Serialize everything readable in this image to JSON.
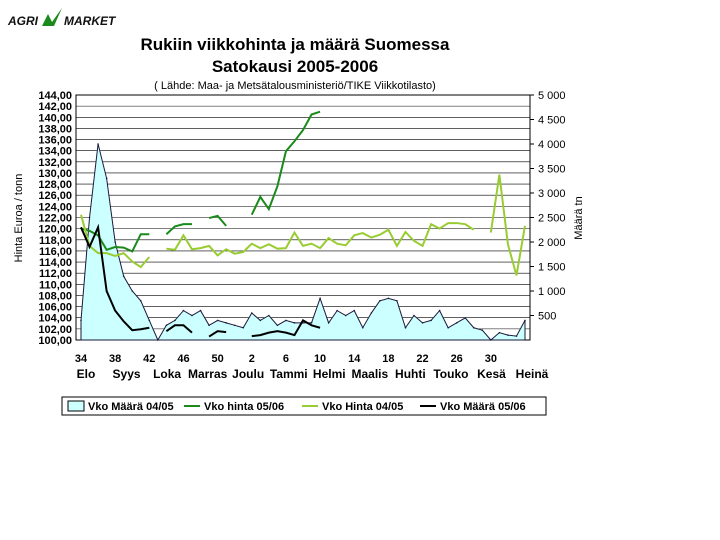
{
  "logo": {
    "text_left": "AGRI",
    "text_right": "MARKET"
  },
  "chart_data": {
    "type": "area",
    "title_line1": "Rukiin viikkohinta ja määrä Suomessa",
    "title_line2": "Satokausi 2005-2006",
    "subtitle": "( Lähde: Maa- ja Metsätalousministeriö/TIKE Viikkotilasto)",
    "ylabel_left": "Hinta Euroa / tonn",
    "ylabel_right": "Määrä tn",
    "ylim_left": [
      100,
      144
    ],
    "ylim_right": [
      0,
      5000
    ],
    "yticks_left": [
      "144,00",
      "142,00",
      "140,00",
      "138,00",
      "136,00",
      "134,00",
      "132,00",
      "130,00",
      "128,00",
      "126,00",
      "124,00",
      "122,00",
      "120,00",
      "118,00",
      "116,00",
      "114,00",
      "112,00",
      "110,00",
      "108,00",
      "106,00",
      "104,00",
      "102,00",
      "100,00"
    ],
    "yticks_right": [
      "5 000",
      "4 500",
      "4 000",
      "3 500",
      "3 000",
      "2 500",
      "2 000",
      "1 500",
      "1 000",
      "500"
    ],
    "week_ticks": [
      "34",
      "38",
      "42",
      "46",
      "50",
      "2",
      "6",
      "10",
      "14",
      "18",
      "22",
      "26",
      "30"
    ],
    "month_labels": [
      "Elo",
      "Syys",
      "Loka",
      "Marras",
      "Joulu",
      "Tammi",
      "Helmi",
      "Maalis",
      "Huhti",
      "Touko",
      "Kesä",
      "Heinä"
    ],
    "weeks": [
      "34",
      "35",
      "36",
      "37",
      "38",
      "39",
      "40",
      "41",
      "42",
      "43",
      "44",
      "45",
      "46",
      "47",
      "48",
      "49",
      "50",
      "51",
      "52",
      "1",
      "2",
      "3",
      "4",
      "5",
      "6",
      "7",
      "8",
      "9",
      "10",
      "11",
      "12",
      "13",
      "14",
      "15",
      "16",
      "17",
      "18",
      "19",
      "20",
      "21",
      "22",
      "23",
      "24",
      "25",
      "26",
      "27",
      "28",
      "29",
      "30",
      "31",
      "32",
      "33",
      "34"
    ],
    "grid": true,
    "legend_position": "bottom",
    "series": [
      {
        "name": "Vko Määrä 04/05",
        "axis": "right",
        "kind": "area",
        "color": "#ccffff",
        "values": [
          400,
          2500,
          4000,
          3300,
          2000,
          1300,
          1000,
          800,
          400,
          0,
          300,
          400,
          600,
          500,
          600,
          300,
          400,
          350,
          300,
          250,
          550,
          400,
          500,
          300,
          400,
          350,
          350,
          350,
          850,
          350,
          600,
          500,
          600,
          250,
          550,
          800,
          850,
          800,
          250,
          500,
          350,
          400,
          600,
          250,
          350,
          450,
          250,
          200,
          0,
          150,
          100,
          80,
          400
        ]
      },
      {
        "name": "Vko hinta 05/06",
        "axis": "left",
        "kind": "line",
        "color": "#1a8a1a",
        "values": [
          120.0,
          119.6,
          118.8,
          116.2,
          116.7,
          116.6,
          115.9,
          119.0,
          119.0,
          null,
          119.0,
          120.4,
          120.8,
          120.8,
          null,
          121.9,
          122.3,
          120.5,
          null,
          null,
          122.5,
          125.7,
          123.5,
          127.6,
          133.9,
          135.7,
          137.7,
          140.5,
          141.0
        ]
      },
      {
        "name": "Vko Hinta 04/05",
        "axis": "left",
        "kind": "line",
        "color": "#99cc33",
        "values": [
          122.5,
          116.9,
          115.6,
          115.6,
          115.1,
          115.6,
          114.1,
          113.1,
          114.9,
          null,
          116.4,
          116.2,
          118.8,
          116.3,
          116.5,
          116.9,
          115.2,
          116.3,
          115.5,
          115.8,
          117.3,
          116.5,
          117.2,
          116.4,
          116.5,
          119.3,
          116.9,
          117.3,
          116.5,
          118.3,
          117.3,
          117.0,
          118.8,
          119.2,
          118.4,
          118.9,
          119.8,
          116.9,
          119.4,
          117.8,
          116.9,
          120.8,
          120.0,
          121.0,
          121.0,
          120.8,
          119.8,
          null,
          119.3,
          129.7,
          117.2,
          111.6,
          120.5
        ]
      },
      {
        "name": "Vko Määrä 05/06",
        "axis": "right",
        "kind": "line",
        "color": "#000000",
        "values": [
          2300,
          1900,
          2300,
          1000,
          600,
          380,
          200,
          220,
          250,
          null,
          180,
          300,
          300,
          150,
          null,
          70,
          180,
          160,
          null,
          null,
          80,
          100,
          150,
          180,
          150,
          100,
          400,
          300,
          250
        ]
      }
    ]
  }
}
